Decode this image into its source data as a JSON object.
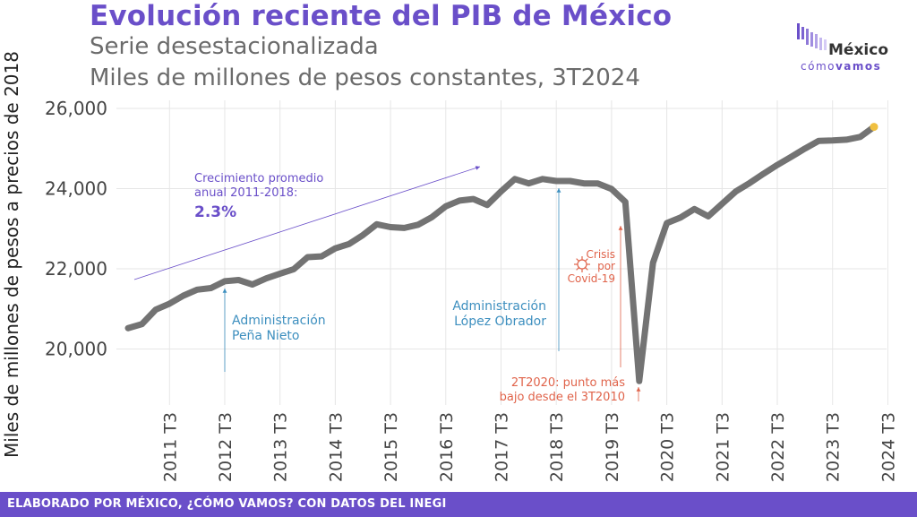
{
  "header": {
    "title": "Evolución reciente del PIB de México",
    "subtitle_line1": "Serie desestacionalizada",
    "subtitle_line2": "Miles de millones de pesos constantes, 3T2024"
  },
  "logo": {
    "word": "México",
    "tag_como": "cómo",
    "tag_vamos": "vamos"
  },
  "footer": {
    "credit": "ELABORADO POR MÉXICO, ¿CÓMO VAMOS? CON DATOS DEL INEGI"
  },
  "colors": {
    "title": "#6a4fc9",
    "line": "#737373",
    "last_point": "#f0c040",
    "annotation_purple": "#6a4fc9",
    "annotation_blue": "#3d8fbf",
    "annotation_red": "#e0634a",
    "footer_bg": "#6a4fc9"
  },
  "chart_data": {
    "type": "line",
    "ylabel": "Miles de millones de pesos a precios de 2018",
    "ylim": [
      18600,
      26300
    ],
    "y_ticks": [
      20000,
      22000,
      24000,
      26000
    ],
    "y_tick_labels": [
      "20,000",
      "22,000",
      "24,000",
      "26,000"
    ],
    "x_tick_labels": [
      "2011 T3",
      "2012 T3",
      "2013 T3",
      "2014 T3",
      "2015 T3",
      "2016 T3",
      "2017 T3",
      "2018 T3",
      "2019 T3",
      "2020 T3",
      "2021 T3",
      "2022 T3",
      "2023 T3",
      "2024 T3"
    ],
    "grid": true,
    "series": [
      {
        "x_start": "2010 T4",
        "values": [
          20520,
          20620,
          20980,
          21130,
          21330,
          21480,
          21520,
          21690,
          21720,
          21610,
          21760,
          21880,
          21990,
          22290,
          22310,
          22510,
          22620,
          22840,
          23110,
          23040,
          23020,
          23100,
          23290,
          23560,
          23700,
          23740,
          23590,
          23930,
          24240,
          24130,
          24240,
          24190,
          24190,
          24130,
          24130,
          23990,
          23670,
          19200,
          22150,
          23140,
          23280,
          23490,
          23310,
          23620,
          23930,
          24140,
          24370,
          24590,
          24790,
          25000,
          25190,
          25200,
          25220,
          25290,
          25540
        ]
      }
    ],
    "annotations": {
      "growth_text_1": "Crecimiento promedio",
      "growth_text_2": "anual 2011-2018:",
      "growth_value": "2.3%",
      "pena_1": "Administración",
      "pena_2": "Peña Nieto",
      "amlo_1": "Administración",
      "amlo_2": "López Obrador",
      "covid_1": "Crisis",
      "covid_2": "por",
      "covid_3": "Covid-19",
      "low_1": "2T2020: punto más",
      "low_2": "bajo desde el 3T2010"
    }
  }
}
